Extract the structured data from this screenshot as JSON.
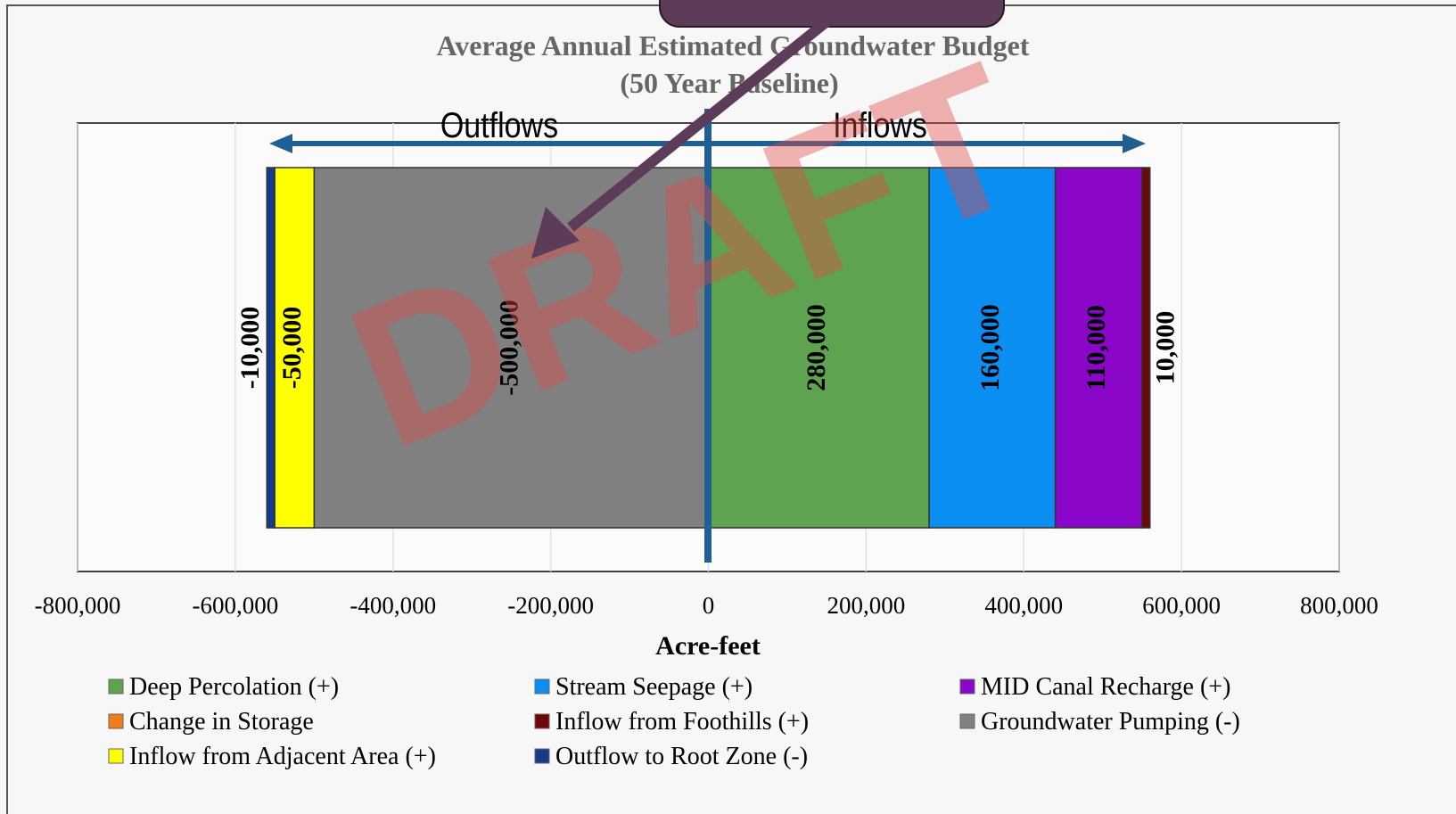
{
  "chart_data": {
    "type": "stacked_hbar",
    "title": "Average Annual Estimated Groundwater Budget",
    "subtitle": "(50 Year Baseline)",
    "x_label": "Acre-feet",
    "annotations": {
      "left": "Outflows",
      "right": "Inflows",
      "watermark": "DRAFT"
    },
    "categories": [
      null
    ],
    "xlim": [
      -800000,
      800000
    ],
    "xticks": [
      {
        "value": -800000,
        "label": "-800,000"
      },
      {
        "value": -600000,
        "label": "-600,000"
      },
      {
        "value": -400000,
        "label": "-400,000"
      },
      {
        "value": -200000,
        "label": "-200,000"
      },
      0,
      {
        "value": 200000,
        "label": "200,000"
      },
      {
        "value": 400000,
        "label": "400,000"
      },
      {
        "value": 600000,
        "label": "600,000"
      },
      {
        "value": 800000,
        "label": "800,000"
      }
    ],
    "grid": true,
    "series": [
      {
        "name": "Deep Percolation (+)",
        "color": "#5fa24f",
        "values": [
          280000
        ],
        "value_labels": [
          "280,000"
        ]
      },
      {
        "name": "Stream Seepage (+)",
        "color": "#0b8ef2",
        "values": [
          160000
        ],
        "value_labels": [
          "160,000"
        ]
      },
      {
        "name": "MID Canal Recharge (+)",
        "color": "#8a07c9",
        "values": [
          110000
        ],
        "value_labels": [
          "110,000"
        ]
      },
      {
        "name": "Change in Storage",
        "color": "#f07d1c",
        "values": [
          null
        ],
        "value_labels": [
          null
        ]
      },
      {
        "name": "Inflow from Foothills (+)",
        "color": "#6e0808",
        "values": [
          10000
        ],
        "value_labels": [
          "10,000"
        ]
      },
      {
        "name": "Groundwater Pumping (-)",
        "color": "#808080",
        "values": [
          -500000
        ],
        "value_labels": [
          "-500,000"
        ]
      },
      {
        "name": "Inflow from Adjacent Area (+)",
        "color": "#ffff00",
        "values": [
          -50000
        ],
        "value_labels": [
          "-50,000"
        ]
      },
      {
        "name": "Outflow to Root Zone (-)",
        "color": "#163a8c",
        "values": [
          -10000
        ],
        "value_labels": [
          "-10,000"
        ]
      }
    ]
  }
}
